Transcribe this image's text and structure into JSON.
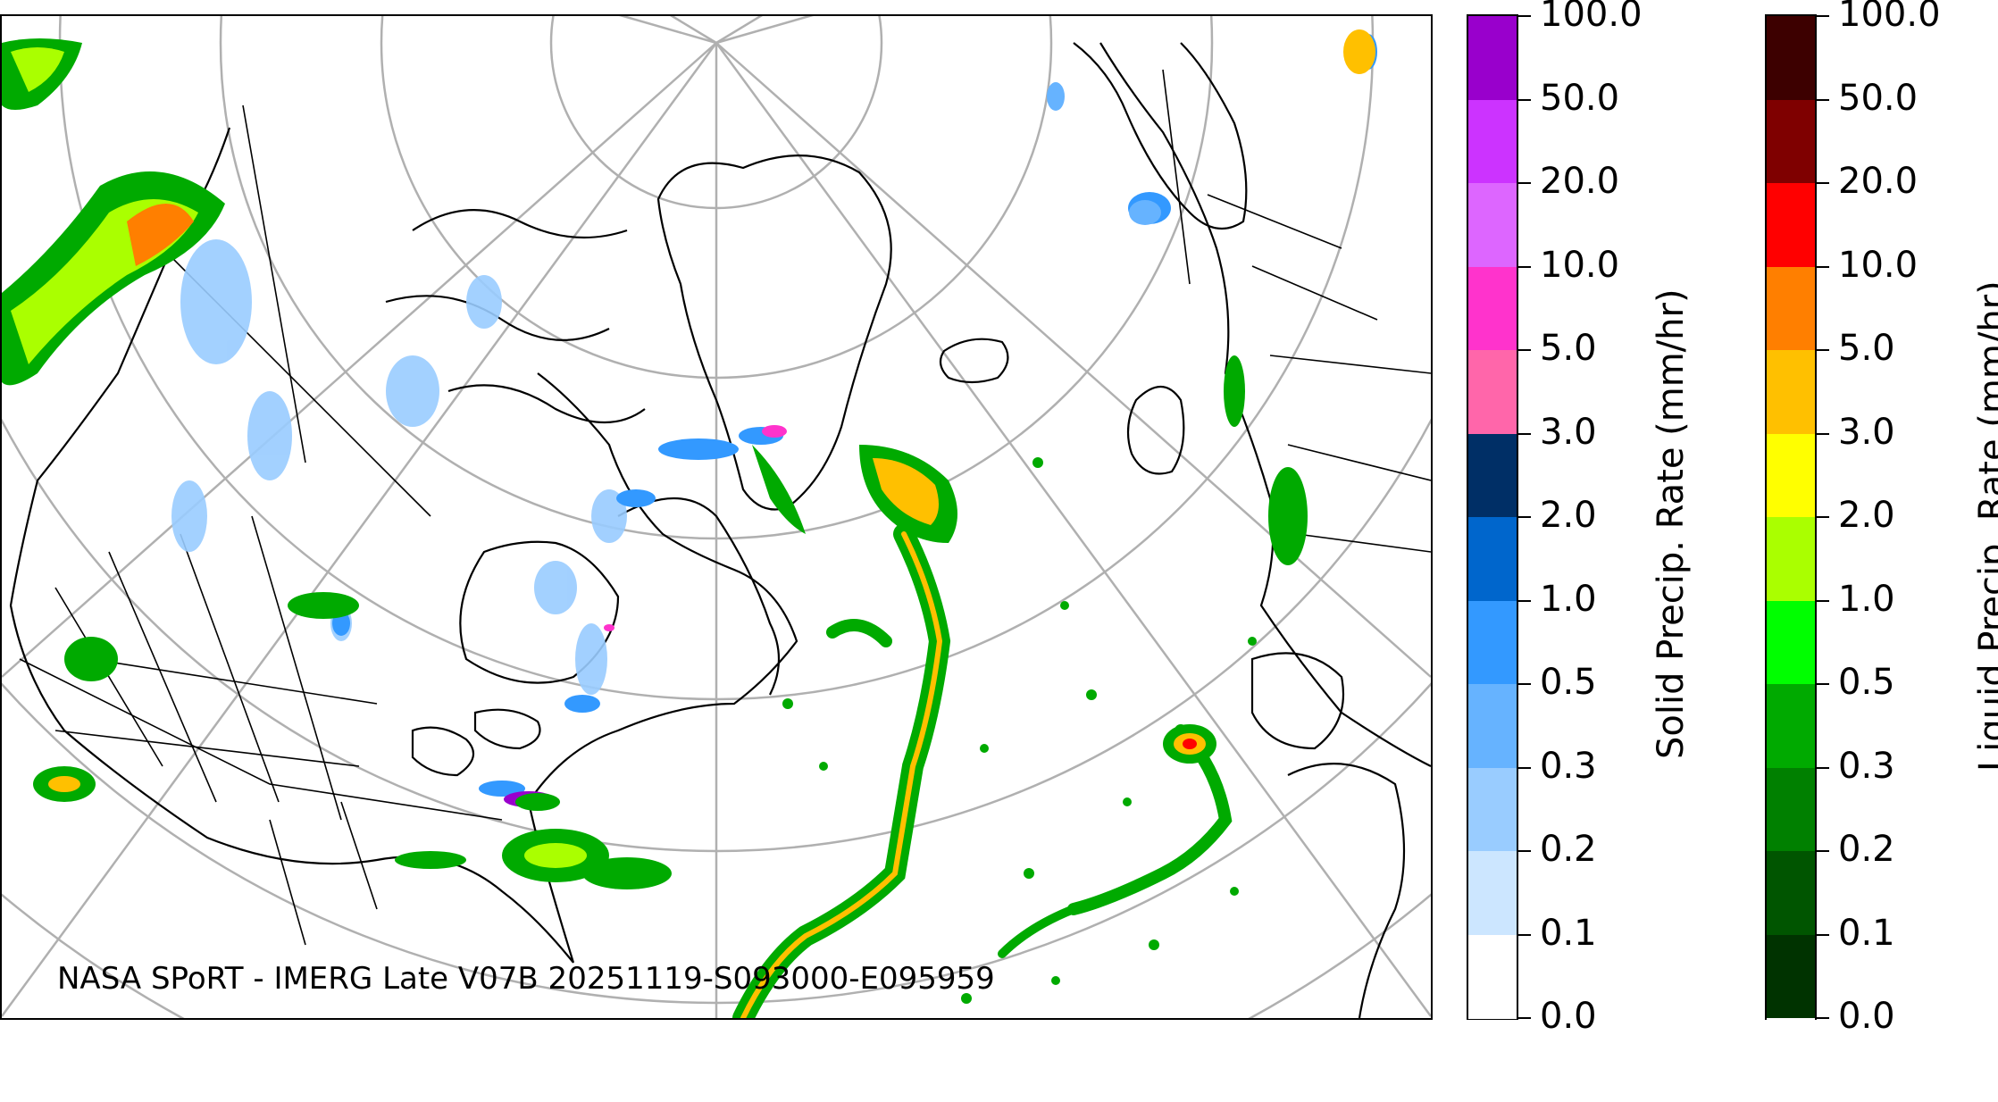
{
  "caption": "NASA SPoRT - IMERG Late V07B 20251119-S093000-E095959",
  "colors": {
    "coastline": "#000000",
    "graticule": "#b0b0b0",
    "background": "#ffffff"
  },
  "solid_colorbar": {
    "title": "Solid Precip. Rate (mm/hr)",
    "tick_labels": [
      "100.0",
      "50.0",
      "20.0",
      "10.0",
      "5.0",
      "3.0",
      "2.0",
      "1.0",
      "0.5",
      "0.3",
      "0.2",
      "0.1",
      "0.0"
    ],
    "colors_top_to_bottom": [
      "#9900cc",
      "#cc33ff",
      "#dd66ff",
      "#ff33cc",
      "#ff66aa",
      "#002f66",
      "#0066cc",
      "#3399ff",
      "#66b3ff",
      "#99ccff",
      "#cce6ff",
      "#ffffff"
    ]
  },
  "liquid_colorbar": {
    "title": "Liquid Precip. Rate (mm/hr)",
    "tick_labels": [
      "100.0",
      "50.0",
      "20.0",
      "10.0",
      "5.0",
      "3.0",
      "2.0",
      "1.0",
      "0.5",
      "0.3",
      "0.2",
      "0.1",
      "0.0"
    ],
    "colors_top_to_bottom": [
      "#3d0000",
      "#7f0000",
      "#ff0000",
      "#ff7f00",
      "#ffc000",
      "#ffff00",
      "#aaff00",
      "#00ff00",
      "#00aa00",
      "#008000",
      "#005500",
      "#003300",
      "#ffffff"
    ]
  },
  "map": {
    "projection": "north-polar",
    "region": "North America, North Atlantic, Greenland, Europe, North Africa",
    "precip_features": [
      {
        "name": "pacific-northwest-rain",
        "type": "liquid",
        "intensity": "heavy"
      },
      {
        "name": "greenland-east-rain",
        "type": "liquid",
        "intensity": "moderate"
      },
      {
        "name": "atlantic-front-rain",
        "type": "liquid",
        "intensity": "moderate"
      },
      {
        "name": "central-atlantic-storm",
        "type": "liquid",
        "intensity": "heavy"
      },
      {
        "name": "us-east-coast-rain",
        "type": "liquid",
        "intensity": "moderate"
      },
      {
        "name": "canada-snow",
        "type": "solid",
        "intensity": "light"
      },
      {
        "name": "baffin-snow",
        "type": "solid",
        "intensity": "moderate"
      },
      {
        "name": "scandinavia-snow",
        "type": "solid",
        "intensity": "light"
      }
    ]
  }
}
